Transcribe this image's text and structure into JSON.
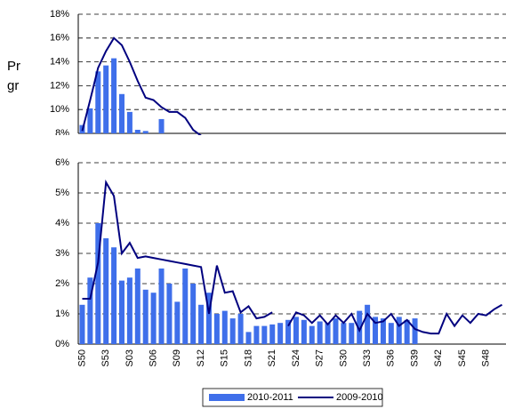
{
  "chart_data": [
    {
      "type": "bar",
      "title_fragments": [
        "Pr",
        "gr"
      ],
      "ylim": [
        8,
        18
      ],
      "yticks": [
        {
          "value": 8,
          "label": "8%"
        },
        {
          "value": 10,
          "label": "10%"
        },
        {
          "value": 12,
          "label": "12%"
        },
        {
          "value": 14,
          "label": "14%"
        },
        {
          "value": 16,
          "label": "16%"
        },
        {
          "value": 18,
          "label": "18%"
        }
      ],
      "grid": true,
      "series": [
        {
          "type": "bar",
          "color": "#3f6fea",
          "values": [
            8.7,
            10.1,
            13.2,
            13.7,
            14.3,
            11.3,
            9.8,
            8.3,
            8.2,
            null,
            9.2,
            null,
            null,
            null,
            null,
            null
          ]
        },
        {
          "type": "line",
          "color": "#00007f",
          "values": [
            8.2,
            10.8,
            13.5,
            14.9,
            16,
            15.4,
            14,
            12.4,
            11,
            10.8,
            10.2,
            9.8,
            9.8,
            9.3,
            8.3,
            7.8
          ]
        }
      ]
    },
    {
      "type": "bar",
      "categories": [
        "S50",
        null,
        null,
        "S53",
        null,
        null,
        "S03",
        null,
        null,
        "S06",
        null,
        null,
        "S09",
        null,
        null,
        "S12",
        null,
        null,
        "S15",
        null,
        null,
        "S18",
        null,
        null,
        "S21",
        null,
        null,
        "S24",
        null,
        null,
        "S27",
        null,
        null,
        "S30",
        null,
        null,
        "S33",
        null,
        null,
        "S36",
        null,
        null,
        "S39",
        null,
        null,
        "S42",
        null,
        null,
        "S45",
        null,
        null,
        "S48",
        null,
        null
      ],
      "ylim": [
        0,
        6
      ],
      "yticks": [
        {
          "value": 0,
          "label": "0%"
        },
        {
          "value": 1,
          "label": "1%"
        },
        {
          "value": 2,
          "label": "2%"
        },
        {
          "value": 3,
          "label": "3%"
        },
        {
          "value": 4,
          "label": "4%"
        },
        {
          "value": 5,
          "label": "5%"
        },
        {
          "value": 6,
          "label": "6%"
        }
      ],
      "grid": true,
      "series": [
        {
          "name": "2010-2011",
          "type": "bar",
          "color": "#3f6fea",
          "values": [
            1.3,
            2.2,
            4.0,
            3.5,
            3.2,
            2.1,
            2.2,
            2.5,
            1.8,
            1.7,
            2.5,
            2.0,
            1.4,
            2.5,
            2.0,
            1.3,
            1.7,
            1.0,
            1.1,
            0.85,
            1.0,
            0.4,
            0.6,
            0.6,
            0.65,
            0.7,
            0.8,
            0.9,
            0.8,
            0.6,
            0.75,
            0.7,
            0.85,
            0.7,
            0.7,
            1.1,
            1.3,
            0.9,
            0.85,
            0.7,
            0.9,
            0.8,
            0.85,
            null,
            null,
            null,
            null,
            null,
            null,
            null,
            null,
            null,
            null,
            null
          ]
        },
        {
          "name": "2009-2010",
          "type": "line",
          "color": "#00007f",
          "values": [
            1.5,
            1.5,
            2.7,
            5.35,
            4.9,
            3.0,
            3.35,
            2.85,
            2.9,
            2.85,
            2.8,
            2.75,
            2.7,
            2.65,
            2.6,
            2.55,
            1.0,
            2.6,
            1.7,
            1.75,
            1.05,
            1.25,
            0.85,
            0.9,
            1.05,
            null,
            0.6,
            1.05,
            0.95,
            0.7,
            0.95,
            0.65,
            0.95,
            0.7,
            1.0,
            0.45,
            1.0,
            0.7,
            0.75,
            1.0,
            0.6,
            0.8,
            0.5,
            0.4,
            0.35,
            0.35,
            1.0,
            0.6,
            0.95,
            0.7,
            1.0,
            0.95,
            1.15,
            1.3
          ]
        }
      ],
      "legend": "bottom"
    }
  ]
}
